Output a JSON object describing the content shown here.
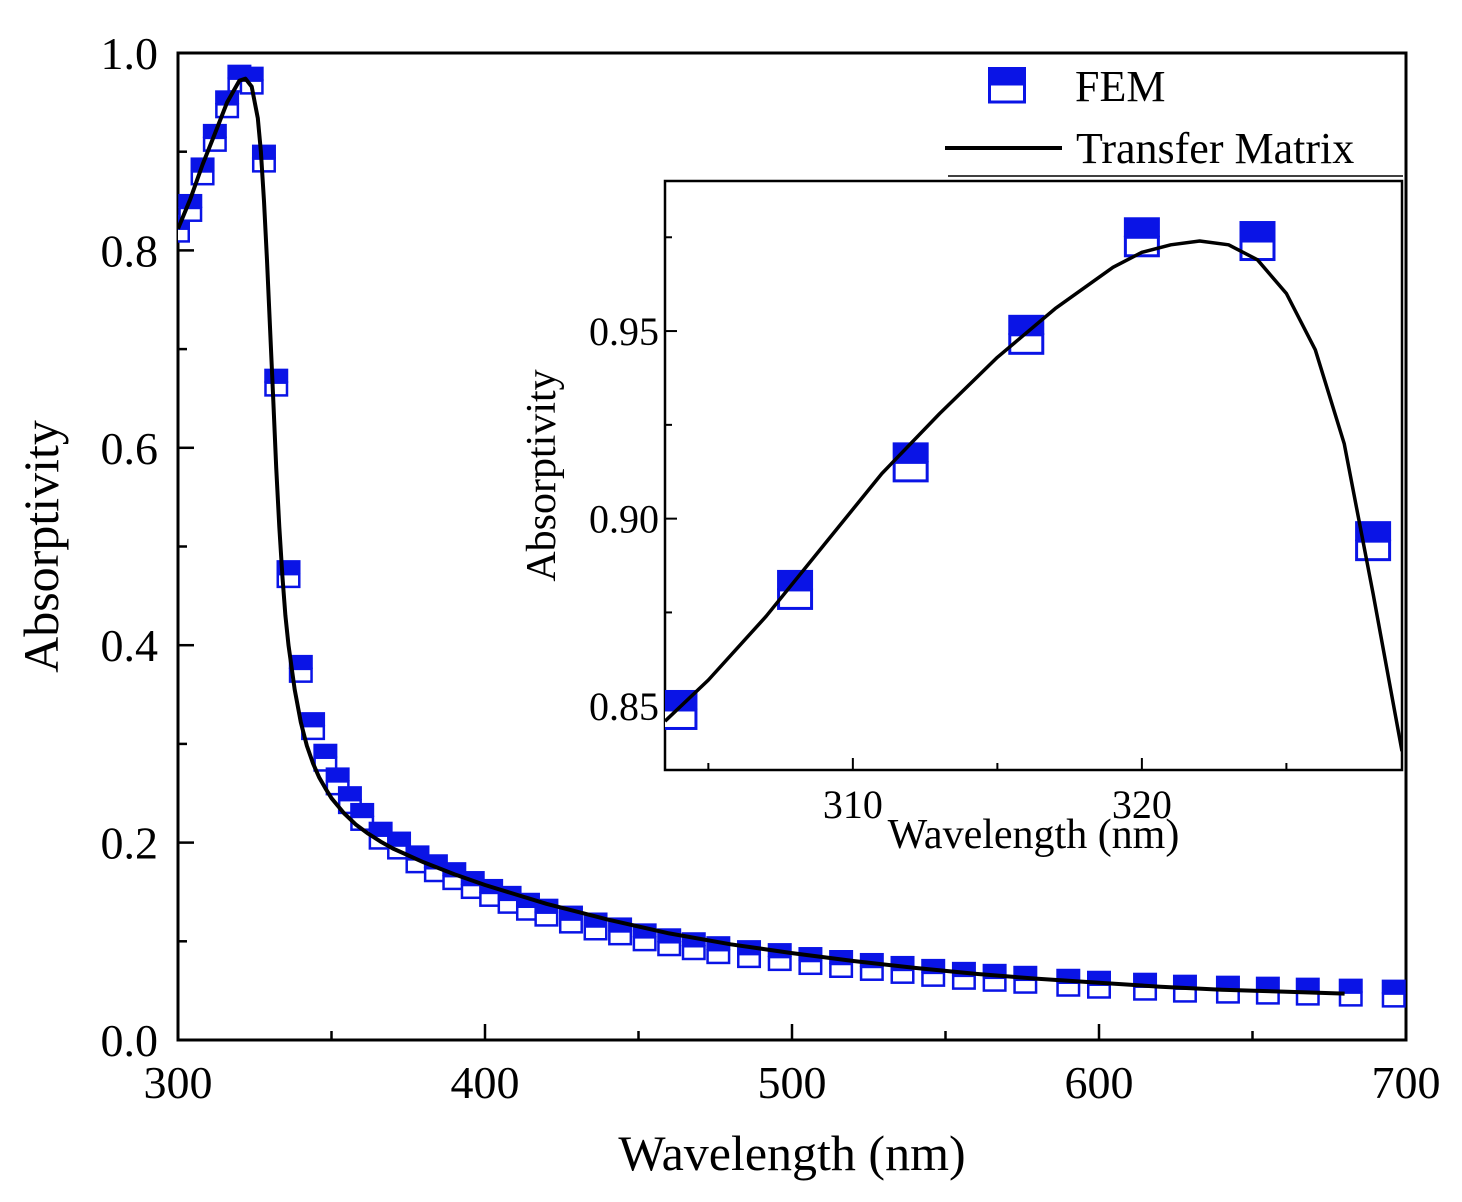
{
  "chart_data": [
    {
      "id": "main",
      "type": "line+scatter",
      "title": "",
      "xlabel": "Wavelength (nm)",
      "ylabel": "Absorptivity",
      "xlim": [
        300,
        700
      ],
      "ylim": [
        0.0,
        1.0
      ],
      "xticks": [
        300,
        400,
        500,
        600,
        700
      ],
      "xtick_labels": [
        "300",
        "400",
        "500",
        "600",
        "700"
      ],
      "yticks": [
        0.0,
        0.2,
        0.4,
        0.6,
        0.8,
        1.0
      ],
      "ytick_labels": [
        "0.0",
        "0.2",
        "0.4",
        "0.6",
        "0.8",
        "1.0"
      ],
      "grid": false,
      "legend_position": "top-right",
      "series": [
        {
          "name": "FEM",
          "kind": "scatter",
          "marker": "half-filled-square",
          "color": "#0a14e6",
          "x": [
            300,
            304,
            308,
            312,
            316,
            320,
            324,
            328,
            332,
            336,
            340,
            344,
            348,
            352,
            356,
            360,
            366,
            372,
            378,
            384,
            390,
            396,
            402,
            408,
            414,
            420,
            428,
            436,
            444,
            452,
            460,
            468,
            476,
            486,
            496,
            506,
            516,
            526,
            536,
            546,
            556,
            566,
            576,
            590,
            600,
            615,
            628,
            642,
            655,
            668,
            682,
            696
          ],
          "y": [
            0.822,
            0.843,
            0.88,
            0.914,
            0.948,
            0.974,
            0.972,
            0.893,
            0.666,
            0.472,
            0.376,
            0.318,
            0.286,
            0.262,
            0.243,
            0.226,
            0.207,
            0.197,
            0.183,
            0.174,
            0.166,
            0.157,
            0.149,
            0.142,
            0.135,
            0.129,
            0.122,
            0.115,
            0.11,
            0.104,
            0.099,
            0.095,
            0.091,
            0.087,
            0.084,
            0.08,
            0.077,
            0.074,
            0.071,
            0.068,
            0.065,
            0.063,
            0.061,
            0.058,
            0.056,
            0.054,
            0.052,
            0.051,
            0.05,
            0.049,
            0.048,
            0.047
          ]
        },
        {
          "name": "Transfer Matrix",
          "kind": "line",
          "color": "#000000",
          "x": [
            300,
            304,
            308,
            312,
            316,
            320,
            322,
            324,
            326,
            327,
            328,
            329,
            330,
            331,
            332,
            333,
            334,
            335,
            336,
            338,
            340,
            342,
            344,
            346,
            348,
            350,
            354,
            358,
            362,
            366,
            370,
            380,
            390,
            400,
            420,
            440,
            460,
            480,
            500,
            520,
            540,
            560,
            580,
            600,
            620,
            640,
            660,
            680
          ],
          "y": [
            0.822,
            0.852,
            0.887,
            0.918,
            0.95,
            0.972,
            0.974,
            0.966,
            0.934,
            0.9,
            0.85,
            0.79,
            0.72,
            0.65,
            0.58,
            0.52,
            0.47,
            0.43,
            0.4,
            0.355,
            0.322,
            0.298,
            0.28,
            0.266,
            0.255,
            0.245,
            0.23,
            0.218,
            0.209,
            0.201,
            0.194,
            0.18,
            0.168,
            0.157,
            0.138,
            0.122,
            0.108,
            0.097,
            0.088,
            0.08,
            0.073,
            0.067,
            0.062,
            0.058,
            0.054,
            0.051,
            0.049,
            0.047
          ]
        }
      ]
    },
    {
      "id": "inset",
      "type": "line+scatter",
      "title": "",
      "xlabel": "Wavelength (nm)",
      "ylabel": "Absorptivity",
      "xlim": [
        303.5,
        329
      ],
      "ylim": [
        0.833,
        0.99
      ],
      "xticks": [
        310,
        320
      ],
      "xtick_labels": [
        "310",
        "320"
      ],
      "yticks": [
        0.85,
        0.9,
        0.95
      ],
      "ytick_labels": [
        "0.85",
        "0.90",
        "0.95"
      ],
      "grid": false,
      "series": [
        {
          "name": "FEM",
          "kind": "scatter",
          "marker": "half-filled-square",
          "color": "#0a14e6",
          "x": [
            304,
            308,
            312,
            316,
            320,
            324,
            328
          ],
          "y": [
            0.849,
            0.881,
            0.915,
            0.949,
            0.975,
            0.974,
            0.894
          ]
        },
        {
          "name": "Transfer Matrix",
          "kind": "line",
          "color": "#000000",
          "x": [
            303.5,
            305,
            307,
            309,
            311,
            313,
            315,
            317,
            319,
            320,
            321,
            322,
            323,
            324,
            325,
            326,
            327,
            328,
            329
          ],
          "y": [
            0.846,
            0.857,
            0.874,
            0.893,
            0.912,
            0.928,
            0.943,
            0.956,
            0.967,
            0.971,
            0.973,
            0.974,
            0.973,
            0.969,
            0.96,
            0.945,
            0.92,
            0.88,
            0.838
          ]
        }
      ]
    }
  ],
  "legend": {
    "fem_label": "FEM",
    "tm_label": "Transfer Matrix"
  }
}
